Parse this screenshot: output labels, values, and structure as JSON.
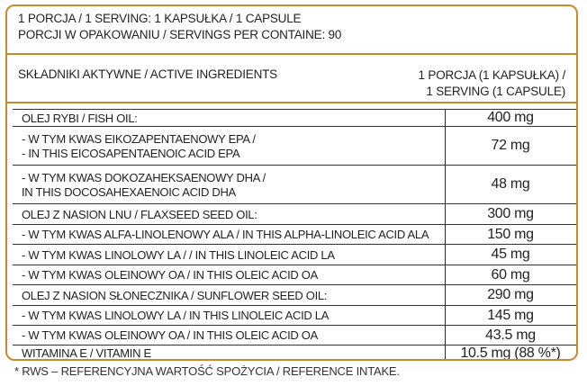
{
  "header": {
    "line1": "1 PORCJA / 1 SERVING:  1 KAPSUŁKA / 1 CAPSULE",
    "line2": "PORCJI W OPAKOWANIU / SERVINGS PER CONTAINE: 90"
  },
  "columns": {
    "left": "SKŁADNIKI AKTYWNE / ACTIVE INGREDIENTS",
    "right_line1": "1 PORCJA (1 KAPSUŁKA) /",
    "right_line2": "1 SERVING (1 CAPSULE)"
  },
  "rows": [
    {
      "label": [
        "OLEJ RYBI / FISH OIL:"
      ],
      "value": "400 mg"
    },
    {
      "label": [
        " - W TYM KWAS EIKOZAPENTAENOWY EPA /",
        " - IN THIS EICOSAPENTAENOIC ACID EPA"
      ],
      "value": "72 mg"
    },
    {
      "label": [
        " - W TYM KWAS DOKOZAHEKSAENOWY DHA /",
        "  IN THIS DOCOSAHEXAENOIC ACID DHA"
      ],
      "value": "48 mg"
    },
    {
      "label": [
        "OLEJ Z NASION LNU / FLAXSEED SEED OIL:"
      ],
      "value": "300 mg"
    },
    {
      "label": [
        "- W TYM KWAS ALFA-LINOLENOWY ALA / IN THIS ALPHA-LINOLEIC ACID ALA"
      ],
      "value": "150 mg"
    },
    {
      "label": [
        "- W TYM KWAS LINOLOWY LA / / IN THIS LINOLEIC ACID LA"
      ],
      "value": "45 mg"
    },
    {
      "label": [
        "- W TYM KWAS OLEINOWY OA / IN THIS OLEIC ACID OA"
      ],
      "value": "60 mg"
    },
    {
      "label": [
        "OLEJ Z NASION SŁONECZNIKA / SUNFLOWER SEED OIL:"
      ],
      "value": "290 mg"
    },
    {
      "label": [
        "- W TYM KWAS LINOLOWY LA / IN THIS LINOLEIC ACID LA"
      ],
      "value": "145 mg"
    },
    {
      "label": [
        "- W TYM KWAS OLEINOWY OA / IN THIS OLEIC ACID OA"
      ],
      "value": "43.5 mg"
    },
    {
      "label": [
        "WITAMINA E / VITAMIN E"
      ],
      "value": "10.5 mg (88 %*)"
    }
  ],
  "footnote": "* RWS – REFERENCYJNA WARTOŚĆ SPOŻYCIA / REFERENCE INTAKE.",
  "colors": {
    "border": "#c98a2e",
    "rule": "#333333"
  }
}
